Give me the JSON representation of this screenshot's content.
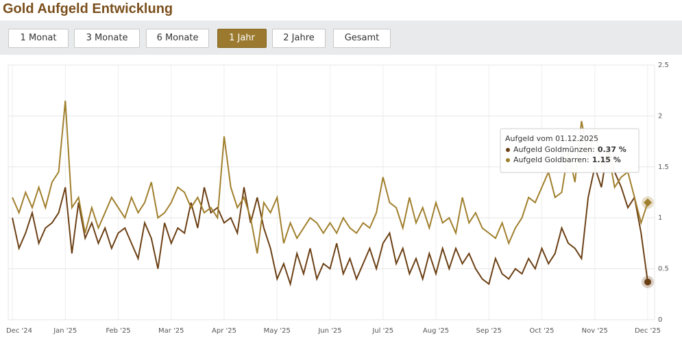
{
  "header": {
    "title": "Gold Aufgeld Entwicklung"
  },
  "buttons": [
    "1 Monat",
    "3 Monate",
    "6 Monate",
    "1 Jahr",
    "2 Jahre",
    "Gesamt"
  ],
  "active_button": 3,
  "chart_data": {
    "type": "line",
    "x_labels": [
      "Dec '24",
      "Jan '25",
      "Feb '25",
      "Mar '25",
      "Apr '25",
      "May '25",
      "Jun '25",
      "Jul '25",
      "Aug '25",
      "Sep '25",
      "Oct '25",
      "Nov '25",
      "Dec '25"
    ],
    "ylim": [
      0,
      2.5
    ],
    "yticks": [
      0,
      0.5,
      1,
      1.5,
      2,
      2.5
    ],
    "grid": true,
    "series": [
      {
        "name": "Aufgeld Goldmünzen",
        "color": "#6b3f14",
        "values": [
          1.0,
          0.7,
          0.85,
          1.05,
          0.75,
          0.9,
          0.95,
          1.05,
          1.3,
          0.65,
          1.15,
          0.8,
          0.95,
          0.75,
          0.9,
          0.7,
          0.85,
          0.9,
          0.75,
          0.6,
          0.95,
          0.8,
          0.5,
          0.95,
          0.75,
          0.9,
          0.85,
          1.15,
          0.9,
          1.3,
          1.05,
          1.1,
          0.95,
          1.0,
          0.85,
          1.3,
          0.95,
          1.2,
          0.9,
          0.7,
          0.4,
          0.55,
          0.35,
          0.65,
          0.45,
          0.7,
          0.4,
          0.55,
          0.5,
          0.75,
          0.45,
          0.6,
          0.4,
          0.55,
          0.7,
          0.5,
          0.75,
          0.85,
          0.55,
          0.7,
          0.45,
          0.6,
          0.4,
          0.65,
          0.45,
          0.7,
          0.5,
          0.7,
          0.55,
          0.65,
          0.5,
          0.4,
          0.35,
          0.6,
          0.45,
          0.4,
          0.5,
          0.45,
          0.6,
          0.5,
          0.7,
          0.55,
          0.65,
          0.9,
          0.75,
          0.7,
          0.6,
          1.2,
          1.5,
          1.3,
          1.7,
          1.45,
          1.3,
          1.1,
          1.2,
          0.85,
          0.37
        ]
      },
      {
        "name": "Aufgeld Goldbarren",
        "color": "#a07f2c",
        "values": [
          1.2,
          1.05,
          1.25,
          1.1,
          1.3,
          1.1,
          1.35,
          1.45,
          2.15,
          1.1,
          1.2,
          0.85,
          1.1,
          0.9,
          1.05,
          1.2,
          1.1,
          1.0,
          1.2,
          1.05,
          1.15,
          1.35,
          1.0,
          1.05,
          1.15,
          1.3,
          1.25,
          1.1,
          1.2,
          1.05,
          1.1,
          1.0,
          1.8,
          1.3,
          1.1,
          1.2,
          1.0,
          0.65,
          1.15,
          1.05,
          1.2,
          0.75,
          0.95,
          0.8,
          0.9,
          1.0,
          0.95,
          0.85,
          0.95,
          0.85,
          1.0,
          0.9,
          0.85,
          0.95,
          0.9,
          1.05,
          1.4,
          1.15,
          1.1,
          0.9,
          1.2,
          0.95,
          1.1,
          0.9,
          1.15,
          0.95,
          1.0,
          0.85,
          1.2,
          0.95,
          1.05,
          0.9,
          0.85,
          0.8,
          0.95,
          0.75,
          0.9,
          1.0,
          1.2,
          1.15,
          1.3,
          1.45,
          1.2,
          1.25,
          1.65,
          1.35,
          1.95,
          1.6,
          1.85,
          1.5,
          1.65,
          1.3,
          1.4,
          1.45,
          1.2,
          0.95,
          1.15
        ]
      }
    ],
    "tooltip": {
      "title": "Aufgeld vom 01.12.2025",
      "items": [
        {
          "label": "Aufgeld Goldmünzen:",
          "value": "0.37 %"
        },
        {
          "label": "Aufgeld Goldbarren:",
          "value": "1.15 %"
        }
      ]
    }
  }
}
